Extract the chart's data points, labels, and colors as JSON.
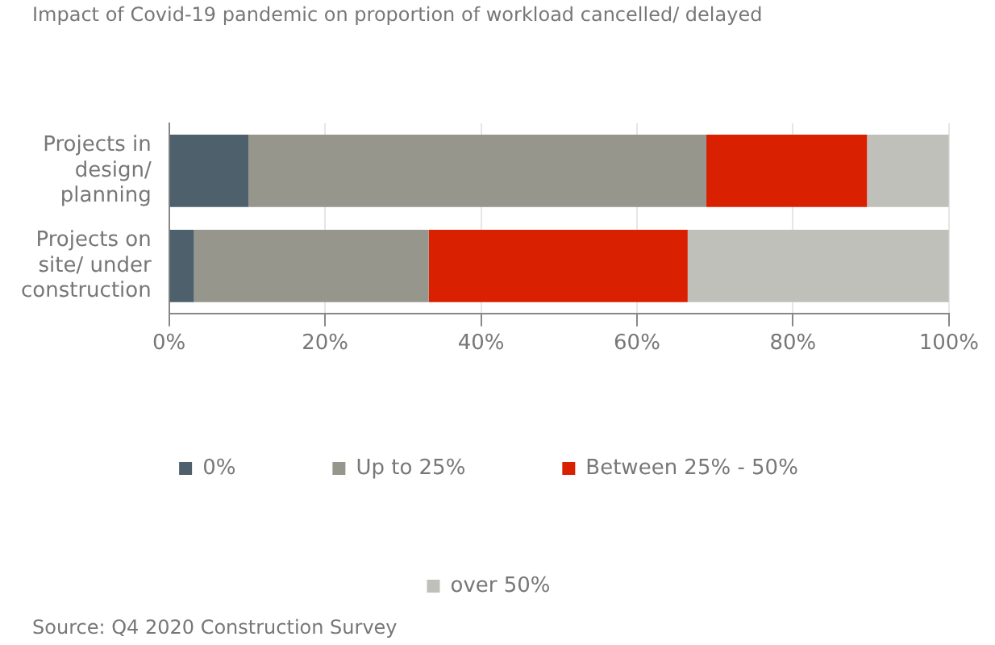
{
  "chart_data": {
    "type": "bar",
    "orientation": "horizontal",
    "stacked": true,
    "title": "Impact of Covid-19 pandemic on  proportion of workload cancelled/ delayed",
    "categories": [
      "Projects in design/ planning",
      "Projects on site/ under construction"
    ],
    "series": [
      {
        "name": "0%",
        "color": "#4d606c",
        "values": [
          10.2,
          3.2
        ]
      },
      {
        "name": "Up to 25%",
        "color": "#96968c",
        "values": [
          58.7,
          30.1
        ]
      },
      {
        "name": "Between 25% - 50%",
        "color": "#d92000",
        "values": [
          20.6,
          33.2
        ]
      },
      {
        "name": "over 50%",
        "color": "#c0c0ba",
        "values": [
          10.5,
          33.5
        ]
      }
    ],
    "xlim": [
      0,
      100
    ],
    "xticks": [
      {
        "value": 0,
        "label": "0%"
      },
      {
        "value": 20,
        "label": "20%"
      },
      {
        "value": 40,
        "label": "40%"
      },
      {
        "value": 60,
        "label": "60%"
      },
      {
        "value": 80,
        "label": "80%"
      },
      {
        "value": 100,
        "label": "100%"
      }
    ],
    "grid": "x",
    "legend": "bottom",
    "annotations": [
      "Source: Q4 2020 Construction Survey"
    ]
  }
}
